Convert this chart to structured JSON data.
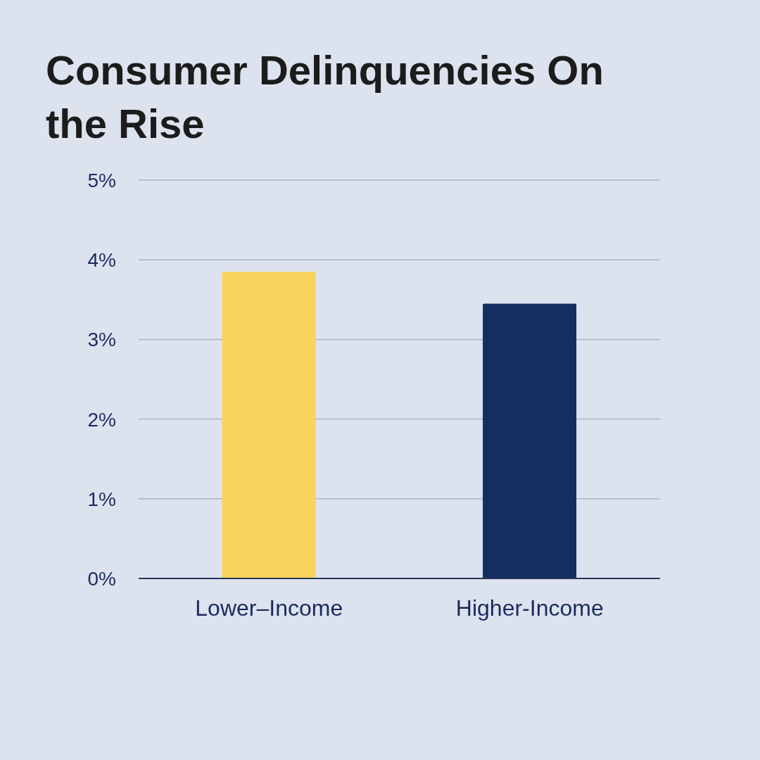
{
  "chart_data": {
    "type": "bar",
    "title": "Consumer Delinquencies On the Rise",
    "categories": [
      "Lower–Income",
      "Higher-Income"
    ],
    "values": [
      3.85,
      3.45
    ],
    "colors": [
      "#f6d45f",
      "#132f62"
    ],
    "ylim": [
      0,
      5
    ],
    "yticks": [
      {
        "value": 0,
        "label": "0%"
      },
      {
        "value": 1,
        "label": "1%"
      },
      {
        "value": 2,
        "label": "2%"
      },
      {
        "value": 3,
        "label": "3%"
      },
      {
        "value": 4,
        "label": "4%"
      },
      {
        "value": 5,
        "label": "5%"
      }
    ],
    "grid": "y"
  }
}
